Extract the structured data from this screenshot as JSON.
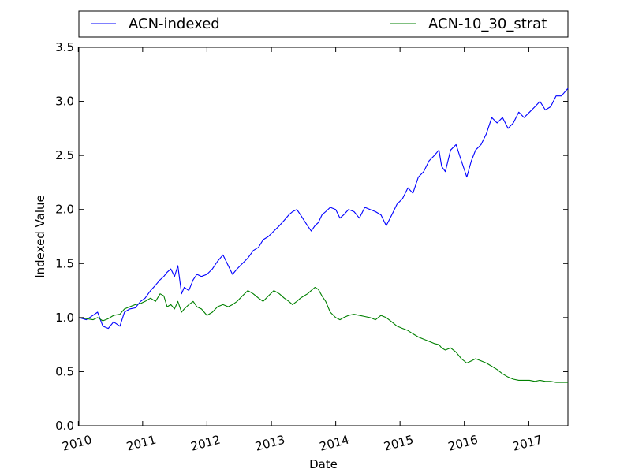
{
  "chart_data": {
    "type": "line",
    "title": "",
    "xlabel": "Date",
    "ylabel": "Indexed Value",
    "xlim": [
      "2010-01-04",
      "2017-08-11"
    ],
    "ylim": [
      0.0,
      3.5
    ],
    "x_ticks": [
      "2010",
      "2011",
      "2012",
      "2013",
      "2014",
      "2015",
      "2016",
      "2017"
    ],
    "y_ticks": [
      "0.0",
      "0.5",
      "1.0",
      "1.5",
      "2.0",
      "2.5",
      "3.0",
      "3.5"
    ],
    "grid": false,
    "legend_position": "top",
    "series": [
      {
        "name": "ACN-indexed",
        "color": "#0000ff",
        "x": [
          "2010-01-04",
          "2010-02-15",
          "2010-03-25",
          "2010-04-20",
          "2010-05-20",
          "2010-06-20",
          "2010-07-20",
          "2010-08-25",
          "2010-09-20",
          "2010-10-20",
          "2010-11-20",
          "2010-12-20",
          "2011-01-15",
          "2011-02-15",
          "2011-03-15",
          "2011-04-10",
          "2011-05-01",
          "2011-05-20",
          "2011-06-10",
          "2011-07-01",
          "2011-07-20",
          "2011-08-10",
          "2011-08-25",
          "2011-09-20",
          "2011-10-15",
          "2011-11-05",
          "2011-12-01",
          "2012-01-01",
          "2012-02-01",
          "2012-03-01",
          "2012-04-01",
          "2012-05-01",
          "2012-05-25",
          "2012-06-20",
          "2012-07-20",
          "2012-08-20",
          "2012-09-20",
          "2012-10-20",
          "2012-11-15",
          "2012-12-15",
          "2013-01-15",
          "2013-02-15",
          "2013-03-15",
          "2013-04-10",
          "2013-05-01",
          "2013-05-25",
          "2013-06-15",
          "2013-07-05",
          "2013-07-25",
          "2013-08-15",
          "2013-09-05",
          "2013-09-25",
          "2013-10-15",
          "2013-11-05",
          "2013-12-01",
          "2014-01-01",
          "2014-01-25",
          "2014-02-15",
          "2014-03-15",
          "2014-04-15",
          "2014-05-15",
          "2014-06-15",
          "2014-07-15",
          "2014-08-15",
          "2014-09-15",
          "2014-10-15",
          "2014-11-15",
          "2014-12-15",
          "2015-01-15",
          "2015-02-15",
          "2015-03-15",
          "2015-04-15",
          "2015-05-15",
          "2015-06-15",
          "2015-07-15",
          "2015-08-10",
          "2015-08-25",
          "2015-09-15",
          "2015-10-15",
          "2015-11-15",
          "2015-12-15",
          "2016-01-15",
          "2016-02-10",
          "2016-03-05",
          "2016-04-05",
          "2016-05-05",
          "2016-06-05",
          "2016-07-05",
          "2016-08-05",
          "2016-09-05",
          "2016-10-05",
          "2016-11-05",
          "2016-12-05",
          "2017-01-05",
          "2017-02-05",
          "2017-03-05",
          "2017-04-05",
          "2017-05-05",
          "2017-06-05",
          "2017-07-05",
          "2017-08-11"
        ],
        "y": [
          1.0,
          0.98,
          1.02,
          1.05,
          0.92,
          0.9,
          0.96,
          0.92,
          1.05,
          1.08,
          1.09,
          1.15,
          1.18,
          1.25,
          1.3,
          1.35,
          1.38,
          1.42,
          1.45,
          1.38,
          1.48,
          1.22,
          1.28,
          1.25,
          1.35,
          1.4,
          1.38,
          1.4,
          1.45,
          1.52,
          1.58,
          1.48,
          1.4,
          1.45,
          1.5,
          1.55,
          1.62,
          1.65,
          1.72,
          1.75,
          1.8,
          1.85,
          1.9,
          1.95,
          1.98,
          2.0,
          1.95,
          1.9,
          1.85,
          1.8,
          1.85,
          1.88,
          1.95,
          1.98,
          2.02,
          2.0,
          1.92,
          1.95,
          2.0,
          1.98,
          1.92,
          2.02,
          2.0,
          1.98,
          1.95,
          1.85,
          1.95,
          2.05,
          2.1,
          2.2,
          2.15,
          2.3,
          2.35,
          2.45,
          2.5,
          2.55,
          2.4,
          2.35,
          2.55,
          2.6,
          2.45,
          2.3,
          2.45,
          2.55,
          2.6,
          2.7,
          2.85,
          2.8,
          2.85,
          2.75,
          2.8,
          2.9,
          2.85,
          2.9,
          2.95,
          3.0,
          2.92,
          2.95,
          3.05,
          3.05,
          3.12
        ]
      },
      {
        "name": "ACN-10_30_strat",
        "color": "#008000",
        "x": [
          "2010-01-04",
          "2010-02-15",
          "2010-03-25",
          "2010-04-20",
          "2010-05-20",
          "2010-06-20",
          "2010-07-20",
          "2010-08-25",
          "2010-09-20",
          "2010-10-20",
          "2010-11-20",
          "2010-12-20",
          "2011-01-15",
          "2011-02-15",
          "2011-03-15",
          "2011-04-10",
          "2011-05-01",
          "2011-05-20",
          "2011-06-10",
          "2011-07-01",
          "2011-07-20",
          "2011-08-10",
          "2011-08-25",
          "2011-09-20",
          "2011-10-15",
          "2011-11-05",
          "2011-12-01",
          "2012-01-01",
          "2012-02-01",
          "2012-03-01",
          "2012-04-01",
          "2012-05-01",
          "2012-05-25",
          "2012-06-20",
          "2012-07-20",
          "2012-08-20",
          "2012-09-20",
          "2012-10-20",
          "2012-11-15",
          "2012-12-15",
          "2013-01-15",
          "2013-02-15",
          "2013-03-15",
          "2013-04-10",
          "2013-05-01",
          "2013-05-25",
          "2013-06-15",
          "2013-07-05",
          "2013-07-25",
          "2013-08-15",
          "2013-09-05",
          "2013-09-25",
          "2013-10-15",
          "2013-11-05",
          "2013-12-01",
          "2014-01-01",
          "2014-01-25",
          "2014-02-15",
          "2014-03-15",
          "2014-04-15",
          "2014-05-15",
          "2014-06-15",
          "2014-07-15",
          "2014-08-15",
          "2014-09-15",
          "2014-10-15",
          "2014-11-15",
          "2014-12-15",
          "2015-01-15",
          "2015-02-15",
          "2015-03-15",
          "2015-04-15",
          "2015-05-15",
          "2015-06-15",
          "2015-07-15",
          "2015-08-10",
          "2015-08-25",
          "2015-09-15",
          "2015-10-15",
          "2015-11-15",
          "2015-12-15",
          "2016-01-15",
          "2016-02-10",
          "2016-03-05",
          "2016-04-05",
          "2016-05-05",
          "2016-06-05",
          "2016-07-05",
          "2016-08-05",
          "2016-09-05",
          "2016-10-05",
          "2016-11-05",
          "2016-12-05",
          "2017-01-05",
          "2017-02-05",
          "2017-03-05",
          "2017-04-05",
          "2017-05-05",
          "2017-06-05",
          "2017-07-05",
          "2017-08-11"
        ],
        "y": [
          1.0,
          0.99,
          0.98,
          1.0,
          0.97,
          0.99,
          1.02,
          1.03,
          1.08,
          1.1,
          1.12,
          1.13,
          1.15,
          1.18,
          1.15,
          1.22,
          1.2,
          1.1,
          1.12,
          1.08,
          1.15,
          1.05,
          1.08,
          1.12,
          1.15,
          1.1,
          1.08,
          1.02,
          1.05,
          1.1,
          1.12,
          1.1,
          1.12,
          1.15,
          1.2,
          1.25,
          1.22,
          1.18,
          1.15,
          1.2,
          1.25,
          1.22,
          1.18,
          1.15,
          1.12,
          1.15,
          1.18,
          1.2,
          1.22,
          1.25,
          1.28,
          1.26,
          1.2,
          1.15,
          1.05,
          1.0,
          0.98,
          1.0,
          1.02,
          1.03,
          1.02,
          1.01,
          1.0,
          0.98,
          1.02,
          1.0,
          0.96,
          0.92,
          0.9,
          0.88,
          0.85,
          0.82,
          0.8,
          0.78,
          0.76,
          0.75,
          0.72,
          0.7,
          0.72,
          0.68,
          0.62,
          0.58,
          0.6,
          0.62,
          0.6,
          0.58,
          0.55,
          0.52,
          0.48,
          0.45,
          0.43,
          0.42,
          0.42,
          0.42,
          0.41,
          0.42,
          0.41,
          0.41,
          0.4,
          0.4,
          0.4
        ]
      }
    ]
  }
}
